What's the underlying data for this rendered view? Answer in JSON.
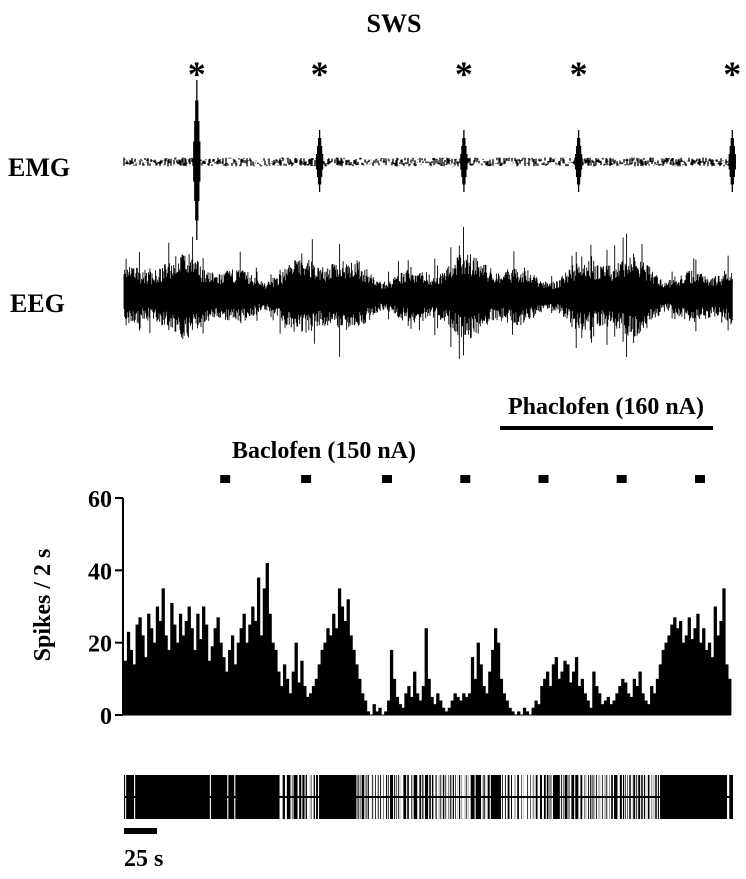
{
  "figure": {
    "state_label": "SWS",
    "marker_symbol": "*",
    "emg_label": "EMG",
    "eeg_label": "EEG",
    "phaclofen_label": "Phaclofen (160 nA)",
    "baclofen_label": "Baclofen (150 nA)",
    "scale_bar_label": "25 s"
  },
  "chart_data": {
    "type": "bar",
    "title": "",
    "xlabel": "",
    "ylabel": "Spikes / 2 s",
    "ylim": [
      0,
      60
    ],
    "yticks": [
      0,
      20,
      40,
      60
    ],
    "x_unit": "s",
    "xlim": [
      0,
      450
    ],
    "bin_width_s": 2,
    "scale_bar_s": 25,
    "baclofen_pulse_times_s": [
      75,
      135,
      195,
      253,
      311,
      369,
      427
    ],
    "phaclofen_interval_s": [
      287,
      454
    ],
    "sws_marker_times_s": [
      54,
      145,
      252,
      337,
      451
    ],
    "series": [
      {
        "values": [
          15,
          23,
          18,
          14,
          25,
          27,
          22,
          16,
          28,
          24,
          20,
          30,
          26,
          35,
          22,
          18,
          31,
          25,
          20,
          28,
          22,
          26,
          30,
          24,
          18,
          28,
          21,
          30,
          25,
          15,
          19,
          24,
          27,
          20,
          16,
          12,
          18,
          22,
          14,
          20,
          24,
          28,
          20,
          25,
          30,
          26,
          38,
          22,
          35,
          42,
          28,
          20,
          18,
          12,
          8,
          14,
          10,
          6,
          12,
          20,
          9,
          15,
          8,
          5,
          6,
          8,
          10,
          14,
          18,
          20,
          24,
          22,
          28,
          24,
          35,
          30,
          26,
          32,
          22,
          18,
          14,
          10,
          6,
          4,
          1,
          0,
          3,
          1,
          2,
          0,
          1,
          4,
          18,
          10,
          5,
          3,
          2,
          6,
          8,
          5,
          12,
          6,
          4,
          8,
          24,
          10,
          5,
          3,
          6,
          4,
          2,
          1,
          2,
          4,
          6,
          5,
          4,
          6,
          5,
          6,
          16,
          10,
          20,
          14,
          8,
          6,
          12,
          18,
          24,
          20,
          10,
          6,
          4,
          2,
          1,
          0,
          1,
          0,
          2,
          1,
          0,
          2,
          4,
          3,
          8,
          10,
          12,
          8,
          14,
          16,
          10,
          12,
          15,
          14,
          9,
          12,
          16,
          8,
          10,
          6,
          4,
          2,
          12,
          8,
          6,
          3,
          4,
          5,
          3,
          4,
          6,
          8,
          10,
          9,
          6,
          5,
          10,
          8,
          12,
          6,
          4,
          3,
          8,
          6,
          10,
          14,
          18,
          20,
          22,
          25,
          27,
          24,
          26,
          20,
          22,
          27,
          21,
          24,
          28,
          20,
          24,
          18,
          20,
          16,
          30,
          22,
          26,
          35,
          14,
          10
        ]
      }
    ]
  }
}
